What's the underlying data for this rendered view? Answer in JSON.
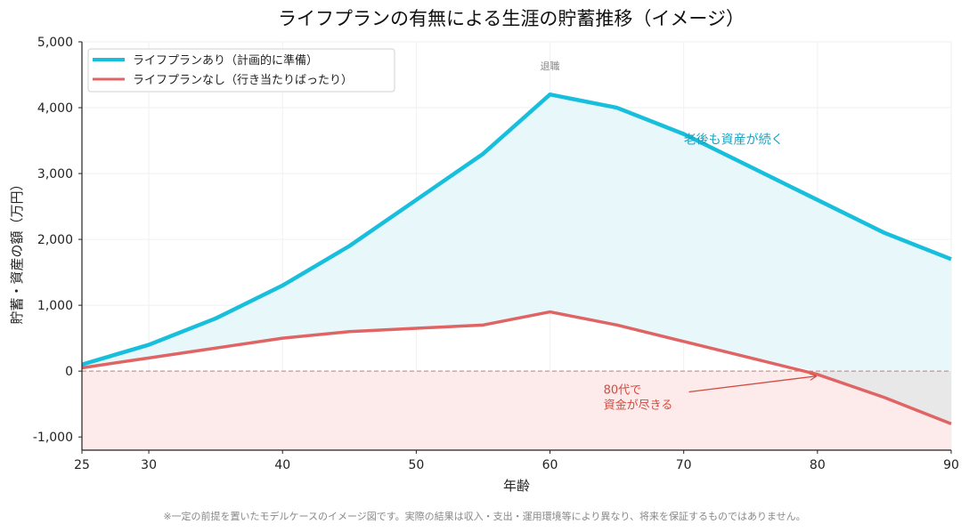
{
  "chart_data": {
    "type": "line",
    "title": "ライフプランの有無による生涯の貯蓄推移（イメージ）",
    "xlabel": "年齢",
    "ylabel": "貯蓄・資産の額（万円）",
    "xlim": [
      25,
      90
    ],
    "ylim": [
      -1200,
      5000
    ],
    "x_ticks": [
      25,
      30,
      40,
      50,
      60,
      70,
      80,
      90
    ],
    "y_ticks": [
      -1000,
      0,
      1000,
      2000,
      3000,
      4000,
      5000
    ],
    "y_tick_labels": [
      "-1,000",
      "0",
      "1,000",
      "2,000",
      "3,000",
      "4,000",
      "5,000"
    ],
    "grid": true,
    "legend_position": "top-left",
    "series": [
      {
        "name": "ライフプランあり（計画的に準備）",
        "color": "#17bfdc",
        "x": [
          25,
          30,
          35,
          40,
          45,
          50,
          55,
          60,
          65,
          70,
          75,
          80,
          85,
          90
        ],
        "y": [
          100,
          400,
          800,
          1300,
          1900,
          2600,
          3300,
          4200,
          4000,
          3600,
          3100,
          2600,
          2100,
          1700
        ]
      },
      {
        "name": "ライフプランなし（行き当たりばったり）",
        "color": "#e06464",
        "x": [
          25,
          30,
          35,
          40,
          45,
          50,
          55,
          60,
          65,
          70,
          75,
          80,
          85,
          90
        ],
        "y": [
          50,
          200,
          350,
          500,
          600,
          650,
          700,
          900,
          700,
          450,
          200,
          -50,
          -400,
          -800
        ]
      }
    ],
    "annotations": {
      "retirement": {
        "text": "退職",
        "x": 60
      },
      "planned": {
        "text": "老後も資産が続く",
        "x": 70,
        "y": 3520
      },
      "unplanned": {
        "lines": [
          "80代で",
          "資金が尽きる"
        ],
        "x": 64,
        "y": -450,
        "arrow_to": [
          80,
          -50
        ]
      }
    }
  },
  "footnote": "※一定の前提を置いたモデルケースのイメージ図です。実際の結果は収入・支出・運用環境等により異なり、将来を保証するものではありません。",
  "colors": {
    "planned": "#17bfdc",
    "unplanned": "#e06464",
    "planned_fill": "#e8f8fa",
    "negative_fill": "#fdeaea",
    "gap_fill": "#e8e8e8"
  }
}
